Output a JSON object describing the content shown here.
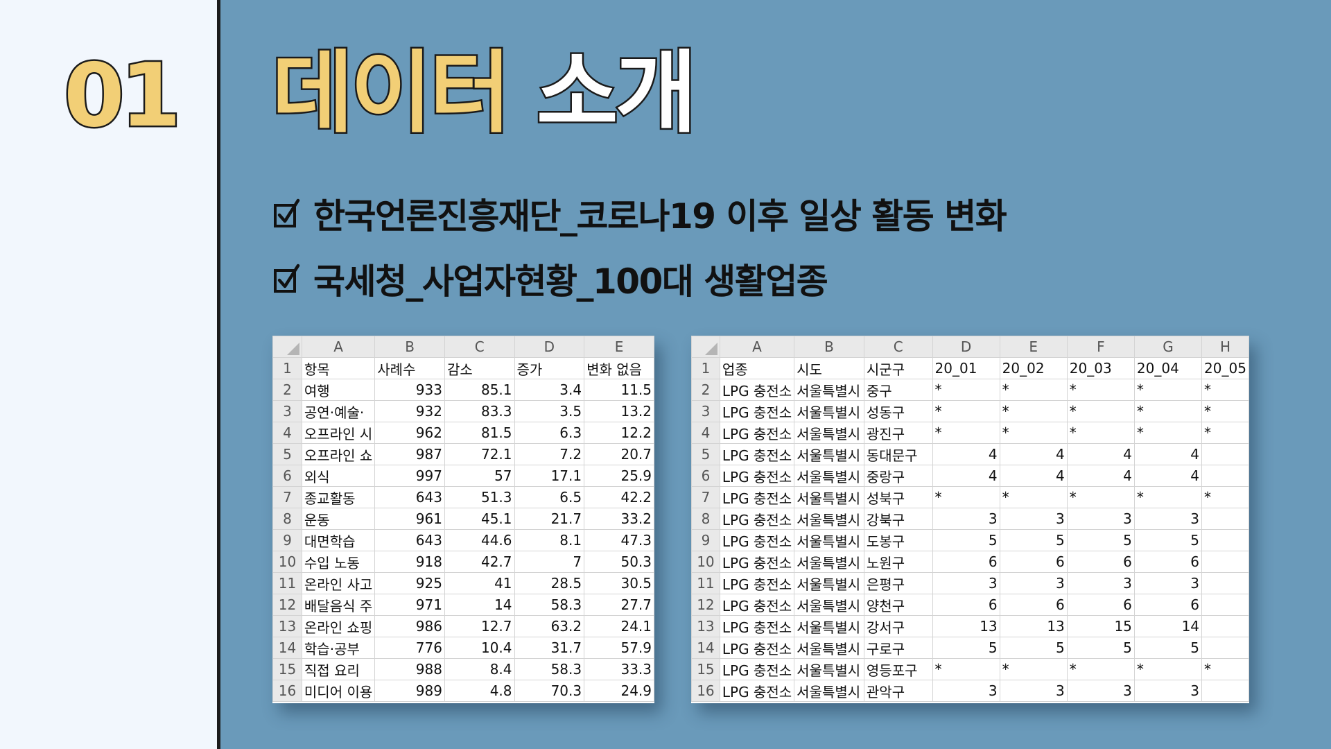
{
  "section_number": "01",
  "title": {
    "part1": "데이터",
    "part2": "소개"
  },
  "bullets": [
    "한국언론진흥재단_코로나19 이후 일상 활동 변화",
    "국세청_사업자현황_100대 생활업종"
  ],
  "sheet1": {
    "columns": [
      "A",
      "B",
      "C",
      "D",
      "E"
    ],
    "rows": [
      [
        "1",
        "항목",
        "사례수",
        "감소",
        "증가",
        "변화 없음"
      ],
      [
        "2",
        "여행",
        "933",
        "85.1",
        "3.4",
        "11.5"
      ],
      [
        "3",
        "공연·예술·",
        "932",
        "83.3",
        "3.5",
        "13.2"
      ],
      [
        "4",
        "오프라인 시",
        "962",
        "81.5",
        "6.3",
        "12.2"
      ],
      [
        "5",
        "오프라인 쇼",
        "987",
        "72.1",
        "7.2",
        "20.7"
      ],
      [
        "6",
        "외식",
        "997",
        "57",
        "17.1",
        "25.9"
      ],
      [
        "7",
        "종교활동",
        "643",
        "51.3",
        "6.5",
        "42.2"
      ],
      [
        "8",
        "운동",
        "961",
        "45.1",
        "21.7",
        "33.2"
      ],
      [
        "9",
        "대면학습",
        "643",
        "44.6",
        "8.1",
        "47.3"
      ],
      [
        "10",
        "수입 노동",
        "918",
        "42.7",
        "7",
        "50.3"
      ],
      [
        "11",
        "온라인 사고",
        "925",
        "41",
        "28.5",
        "30.5"
      ],
      [
        "12",
        "배달음식 주",
        "971",
        "14",
        "58.3",
        "27.7"
      ],
      [
        "13",
        "온라인 쇼핑",
        "986",
        "12.7",
        "63.2",
        "24.1"
      ],
      [
        "14",
        "학습·공부",
        "776",
        "10.4",
        "31.7",
        "57.9"
      ],
      [
        "15",
        "직접 요리",
        "988",
        "8.4",
        "58.3",
        "33.3"
      ],
      [
        "16",
        "미디어 이용",
        "989",
        "4.8",
        "70.3",
        "24.9"
      ]
    ]
  },
  "sheet2": {
    "columns": [
      "A",
      "B",
      "C",
      "D",
      "E",
      "F",
      "G",
      "H"
    ],
    "rows": [
      [
        "1",
        "업종",
        "시도",
        "시군구",
        "20_01",
        "20_02",
        "20_03",
        "20_04",
        "20_05"
      ],
      [
        "2",
        "LPG 충전소",
        "서울특별시",
        "중구",
        "*",
        "*",
        "*",
        "*",
        "*"
      ],
      [
        "3",
        "LPG 충전소",
        "서울특별시",
        "성동구",
        "*",
        "*",
        "*",
        "*",
        "*"
      ],
      [
        "4",
        "LPG 충전소",
        "서울특별시",
        "광진구",
        "*",
        "*",
        "*",
        "*",
        "*"
      ],
      [
        "5",
        "LPG 충전소",
        "서울특별시",
        "동대문구",
        "4",
        "4",
        "4",
        "4",
        ""
      ],
      [
        "6",
        "LPG 충전소",
        "서울특별시",
        "중랑구",
        "4",
        "4",
        "4",
        "4",
        ""
      ],
      [
        "7",
        "LPG 충전소",
        "서울특별시",
        "성북구",
        "*",
        "*",
        "*",
        "*",
        "*"
      ],
      [
        "8",
        "LPG 충전소",
        "서울특별시",
        "강북구",
        "3",
        "3",
        "3",
        "3",
        ""
      ],
      [
        "9",
        "LPG 충전소",
        "서울특별시",
        "도봉구",
        "5",
        "5",
        "5",
        "5",
        ""
      ],
      [
        "10",
        "LPG 충전소",
        "서울특별시",
        "노원구",
        "6",
        "6",
        "6",
        "6",
        ""
      ],
      [
        "11",
        "LPG 충전소",
        "서울특별시",
        "은평구",
        "3",
        "3",
        "3",
        "3",
        ""
      ],
      [
        "12",
        "LPG 충전소",
        "서울특별시",
        "양천구",
        "6",
        "6",
        "6",
        "6",
        ""
      ],
      [
        "13",
        "LPG 충전소",
        "서울특별시",
        "강서구",
        "13",
        "13",
        "15",
        "14",
        ""
      ],
      [
        "14",
        "LPG 충전소",
        "서울특별시",
        "구로구",
        "5",
        "5",
        "5",
        "5",
        ""
      ],
      [
        "15",
        "LPG 충전소",
        "서울특별시",
        "영등포구",
        "*",
        "*",
        "*",
        "*",
        "*"
      ],
      [
        "16",
        "LPG 충전소",
        "서울특별시",
        "관악구",
        "3",
        "3",
        "3",
        "3",
        ""
      ]
    ]
  },
  "colors": {
    "background": "#6a9aba",
    "left_panel": "#f2f7fd",
    "accent_yellow": "#f2cf76",
    "outline": "#1a1a1a"
  }
}
